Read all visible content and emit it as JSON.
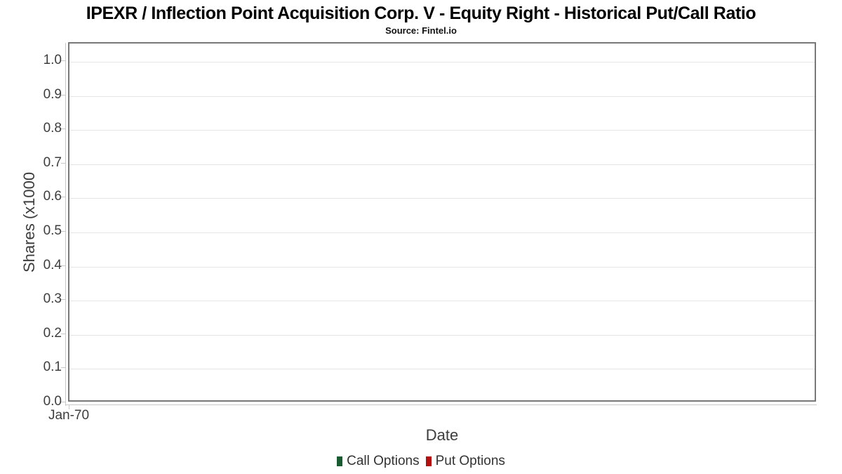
{
  "chart_data": {
    "type": "line",
    "title": "IPEXR / Inflection Point Acquisition Corp. V - Equity Right - Historical Put/Call Ratio",
    "subtitle": "Source: Fintel.io",
    "xlabel": "Date",
    "ylabel": "Shares (x1000",
    "x_ticks": [
      "Jan-70"
    ],
    "y_ticks": [
      "0.0",
      "0.1",
      "0.2",
      "0.3",
      "0.4",
      "0.5",
      "0.6",
      "0.7",
      "0.8",
      "0.9",
      "1.0"
    ],
    "ylim": [
      0.0,
      1.05
    ],
    "grid": "horizontal",
    "legend_position": "bottom-center",
    "series": [
      {
        "name": "Call Options",
        "color": "#1a5c32",
        "values": []
      },
      {
        "name": "Put Options",
        "color": "#b40f0f",
        "values": []
      }
    ]
  },
  "colors": {
    "plot_border": "#787878",
    "gridline": "#e6e6e6",
    "axis_line": "#c8c8c8",
    "tick_text": "#3d3d3d",
    "title_text": "#000000",
    "legend_text": "#333333"
  }
}
